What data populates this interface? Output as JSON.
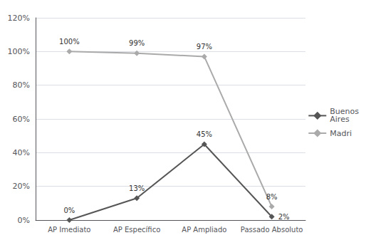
{
  "chart_data": {
    "type": "line",
    "categories": [
      "AP Imediato",
      "AP Específico",
      "AP Ampliado",
      "Passado Absoluto"
    ],
    "series": [
      {
        "name": "Buenos\nAires",
        "color": "#555555",
        "values": [
          0,
          13,
          45,
          2
        ],
        "value_labels": [
          "0%",
          "13%",
          "45%",
          "2%"
        ]
      },
      {
        "name": "Madri",
        "color": "#aaaaaa",
        "values": [
          100,
          99,
          97,
          8
        ],
        "value_labels": [
          "100%",
          "99%",
          "97%",
          "8%"
        ]
      }
    ],
    "ylim": [
      0,
      120
    ],
    "yticks": [
      {
        "value": 0,
        "label": "0%"
      },
      {
        "value": 20,
        "label": "20%"
      },
      {
        "value": 40,
        "label": "40%"
      },
      {
        "value": 60,
        "label": "60%"
      },
      {
        "value": 80,
        "label": "80%"
      },
      {
        "value": 100,
        "label": "100%"
      },
      {
        "value": 120,
        "label": "120%"
      }
    ],
    "grid": true,
    "legend": "right",
    "data_labels": true,
    "marker": "diamond"
  }
}
